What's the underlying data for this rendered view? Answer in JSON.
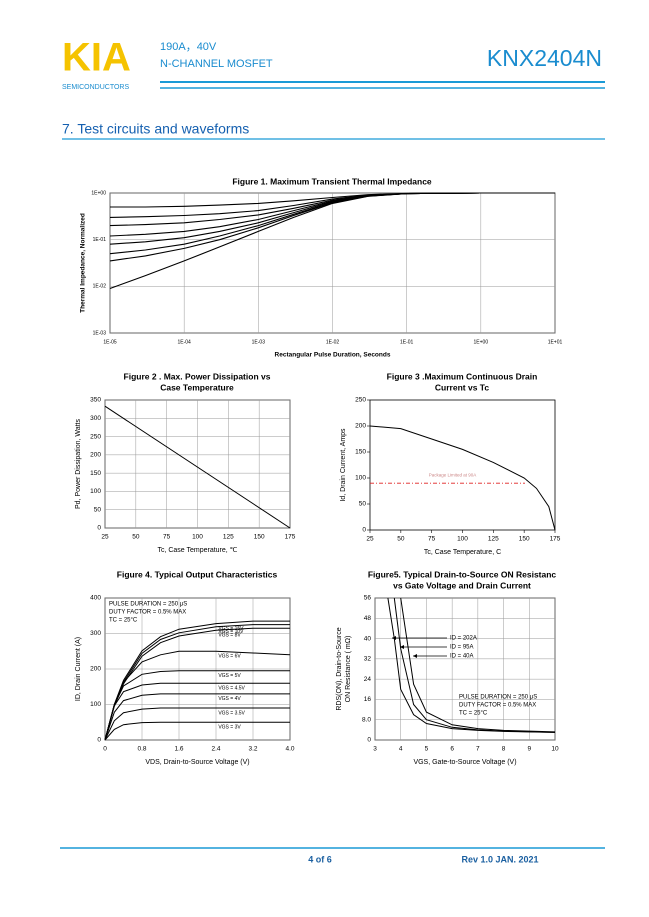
{
  "header": {
    "logo": "KIA",
    "logo_sub": "SEMICONDUCTORS",
    "rating": "190A，40V",
    "device_type": "N-CHANNEL MOSFET",
    "part_number": "KNX2404N"
  },
  "section_title": "7. Test circuits and waveforms",
  "chart_data": [
    {
      "type": "line",
      "title": [
        "Figure 1. Maximum Transient Thermal Impedance"
      ],
      "xlabel": "Rectangular Pulse Duration, Seconds",
      "ylabel": [
        "Thermal Impedance, Normalized"
      ],
      "xlog": true,
      "ylog": true,
      "grid": true,
      "xlim": [
        1e-05,
        10
      ],
      "ylim": [
        0.001,
        1
      ],
      "xticks": [
        {
          "value": 1e-05,
          "label": "1E-05"
        },
        {
          "value": 0.0001,
          "label": "1E-04"
        },
        {
          "value": 0.001,
          "label": "1E-03"
        },
        {
          "value": 0.01,
          "label": "1E-02"
        },
        {
          "value": 0.1,
          "label": "1E-01"
        },
        {
          "value": 1,
          "label": "1E+00"
        },
        {
          "value": 10,
          "label": "1E+01"
        }
      ],
      "yticks": [
        {
          "value": 1,
          "label": "1E+00"
        },
        {
          "value": 0.1,
          "label": "1E-01"
        },
        {
          "value": 0.01,
          "label": "1E-02"
        },
        {
          "value": 0.001,
          "label": "1E-03"
        }
      ],
      "x": [
        1e-05,
        3e-05,
        0.0001,
        0.0003,
        0.001,
        0.003,
        0.01,
        0.03,
        0.1,
        1,
        10
      ],
      "series": [
        {
          "color": "#000000",
          "values": [
            0.009,
            0.017,
            0.035,
            0.07,
            0.15,
            0.3,
            0.6,
            0.85,
            0.97,
            1,
            1
          ]
        },
        {
          "color": "#000000",
          "values": [
            0.035,
            0.045,
            0.065,
            0.1,
            0.18,
            0.33,
            0.62,
            0.86,
            0.97,
            1,
            1
          ]
        },
        {
          "color": "#000000",
          "values": [
            0.05,
            0.06,
            0.08,
            0.12,
            0.2,
            0.35,
            0.63,
            0.86,
            0.97,
            1,
            1
          ]
        },
        {
          "color": "#000000",
          "values": [
            0.08,
            0.09,
            0.11,
            0.15,
            0.23,
            0.38,
            0.65,
            0.87,
            0.97,
            1,
            1
          ]
        },
        {
          "color": "#000000",
          "values": [
            0.12,
            0.13,
            0.15,
            0.19,
            0.27,
            0.42,
            0.67,
            0.88,
            0.97,
            1,
            1
          ]
        },
        {
          "color": "#000000",
          "values": [
            0.2,
            0.21,
            0.23,
            0.27,
            0.34,
            0.47,
            0.7,
            0.89,
            0.97,
            1,
            1
          ]
        },
        {
          "color": "#000000",
          "values": [
            0.3,
            0.31,
            0.33,
            0.36,
            0.42,
            0.54,
            0.74,
            0.9,
            0.97,
            1,
            1
          ]
        },
        {
          "color": "#000000",
          "values": [
            0.5,
            0.5,
            0.52,
            0.55,
            0.6,
            0.68,
            0.8,
            0.92,
            0.98,
            1,
            1
          ]
        }
      ]
    },
    {
      "type": "line",
      "title": [
        "Figure 2 . Max. Power Dissipation vs",
        "Case Temperature"
      ],
      "xlabel": "Tc, Case Temperature, ℃",
      "ylabel": [
        "Pd, Power Dissipation, Watts"
      ],
      "grid": true,
      "xlim": [
        25,
        175
      ],
      "ylim": [
        0,
        350
      ],
      "xticks": [
        25,
        50,
        75,
        100,
        125,
        150,
        175
      ],
      "yticks": [
        0,
        50,
        100,
        150,
        200,
        250,
        300,
        350
      ],
      "x": [
        25,
        175
      ],
      "series": [
        {
          "color": "#000000",
          "values": [
            333,
            0
          ]
        }
      ]
    },
    {
      "type": "line",
      "title": [
        "Figure 3 .Maximum Continuous Drain",
        "Current  vs Tc"
      ],
      "xlabel": "Tc, Case Temperature, C",
      "ylabel": [
        "Id, Drain Current, Amps"
      ],
      "grid": false,
      "xlim": [
        25,
        175
      ],
      "ylim": [
        0,
        250
      ],
      "xticks": [
        25,
        50,
        75,
        100,
        125,
        150,
        175
      ],
      "yticks": [
        0,
        50,
        100,
        150,
        200,
        250
      ],
      "x": [
        25,
        50,
        75,
        100,
        125,
        150,
        160,
        170,
        175
      ],
      "series": [
        {
          "color": "#000000",
          "values": [
            200,
            195,
            175,
            155,
            130,
            100,
            80,
            45,
            0
          ]
        }
      ],
      "reference_line": {
        "value": 90,
        "label": "Package Limited at 90A",
        "color": "#e02020"
      }
    },
    {
      "type": "line",
      "title": [
        "Figure 4. Typical Output Characteristics"
      ],
      "xlabel": "VDS, Drain-to-Source Voltage (V)",
      "ylabel": [
        "ID, Drain Current (A)"
      ],
      "grid": true,
      "xlim": [
        0,
        4
      ],
      "ylim": [
        0,
        400
      ],
      "xticks": [
        0,
        0.8,
        1.6,
        2.4,
        3.2,
        {
          "value": 4,
          "label": "4.0"
        }
      ],
      "yticks": [
        0,
        100,
        200,
        300,
        400
      ],
      "notes": [
        "PULSE DURATION = 250 μS",
        "DUTY FACTOR = 0.5% MAX",
        "TC = 25°C"
      ],
      "x": [
        0,
        0.2,
        0.4,
        0.8,
        1.2,
        1.6,
        2.4,
        3.2,
        4.0
      ],
      "series": [
        {
          "name": "VGS = 15V",
          "color": "#000000",
          "values": [
            0,
            100,
            168,
            251,
            291,
            312,
            328,
            335,
            335
          ]
        },
        {
          "name": "VGS = 10V",
          "color": "#000000",
          "values": [
            0,
            98,
            163,
            244,
            283,
            302,
            319,
            325,
            325
          ]
        },
        {
          "name": "VGS = 8V",
          "color": "#000000",
          "values": [
            0,
            95,
            158,
            236,
            274,
            293,
            309,
            315,
            315
          ]
        },
        {
          "name": "VGS = 6V",
          "color": "#000000",
          "values": [
            0,
            100,
            163,
            220,
            240,
            250,
            250,
            245,
            240
          ]
        },
        {
          "name": "VGS = 5V",
          "color": "#000000",
          "values": [
            0,
            98,
            152,
            185,
            193,
            195,
            195,
            195,
            195
          ]
        },
        {
          "name": "VGS = 4.5V",
          "color": "#000000",
          "values": [
            0,
            96,
            136,
            155,
            160,
            160,
            160,
            160,
            160
          ]
        },
        {
          "name": "VGS = 4V",
          "color": "#000000",
          "values": [
            0,
            78,
            111,
            126,
            130,
            130,
            130,
            130,
            130
          ]
        },
        {
          "name": "VGS = 3.5V",
          "color": "#000000",
          "values": [
            0,
            54,
            77,
            87,
            90,
            90,
            90,
            90,
            90
          ]
        },
        {
          "name": "VGS = 3V",
          "color": "#000000",
          "values": [
            0,
            30,
            43,
            49,
            50,
            50,
            50,
            50,
            50
          ]
        }
      ]
    },
    {
      "type": "line",
      "title": [
        "Figure5.  Typical Drain-to-Source ON Resistanc",
        "vs Gate Voltage and Drain Current"
      ],
      "xlabel": "VGS, Gate-to-Source Voltage (V)",
      "ylabel": [
        "RDS(ON), Drain-to-Source",
        "ON Resistance ( mΩ)"
      ],
      "grid": true,
      "xlim": [
        3,
        10
      ],
      "ylim": [
        0,
        56
      ],
      "xticks": [
        3,
        4,
        5,
        6,
        7,
        8,
        9,
        10
      ],
      "yticks": [
        0,
        {
          "value": 8,
          "label": "8.0"
        },
        16,
        24,
        32,
        40,
        48,
        56
      ],
      "notes": [
        "PULSE DURATION = 250 μS",
        "DUTY FACTOR = 0.5% MAX",
        "TC = 25°C"
      ],
      "x": [
        3.5,
        3.75,
        4,
        4.5,
        5,
        6,
        7,
        8,
        10
      ],
      "series": [
        {
          "name": "ID = 202A",
          "color": "#000000",
          "values": [
            56,
            40,
            20,
            10,
            6.5,
            4.5,
            3.8,
            3.4,
            3
          ]
        },
        {
          "name": "ID = 95A",
          "color": "#000000",
          "values": [
            null,
            56,
            36,
            14,
            8,
            5,
            4,
            3.5,
            3
          ]
        },
        {
          "name": "ID = 40A",
          "color": "#000000",
          "values": [
            null,
            null,
            56,
            22,
            11,
            6,
            4.5,
            3.8,
            3.2
          ]
        }
      ]
    }
  ],
  "footer": {
    "page": "4 of 6",
    "revision": "Rev 1.0 JAN. 2021"
  }
}
